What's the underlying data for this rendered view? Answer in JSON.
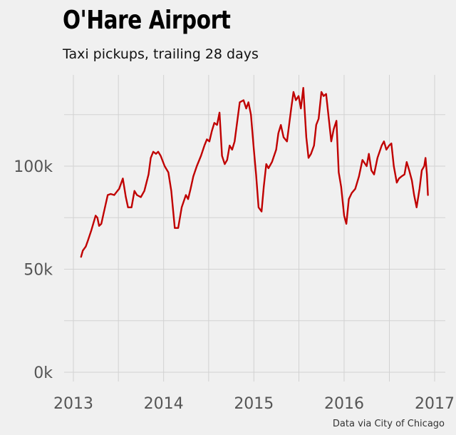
{
  "chart_data": {
    "type": "line",
    "title": "O'Hare Airport",
    "subtitle": "Taxi pickups, trailing 28 days",
    "caption": "Data via City of Chicago",
    "xlabel": "",
    "ylabel": "",
    "x_ticks": [
      "2013",
      "2014",
      "2015",
      "2016",
      "2017"
    ],
    "y_ticks": [
      "0k",
      "50k",
      "100k"
    ],
    "xlim": [
      "2013-01-01",
      "2017-01-01"
    ],
    "ylim": [
      0,
      140000
    ],
    "grid": true,
    "colors": {
      "line": "#c00000",
      "background": "#f0f0f0",
      "grid": "#d2d2d2"
    },
    "series": [
      {
        "x": [
          "2013-02-01",
          "2013-02-08",
          "2013-02-20",
          "2013-03-01",
          "2013-03-15",
          "2013-04-01",
          "2013-04-08",
          "2013-04-15",
          "2013-04-24",
          "2013-05-05",
          "2013-05-20",
          "2013-06-01",
          "2013-06-15",
          "2013-06-28",
          "2013-07-05",
          "2013-07-20",
          "2013-08-01",
          "2013-08-10",
          "2013-08-24",
          "2013-09-05",
          "2013-09-15",
          "2013-10-01",
          "2013-10-15",
          "2013-11-01",
          "2013-11-10",
          "2013-11-20",
          "2013-12-01",
          "2013-12-10",
          "2013-12-20",
          "2014-01-05",
          "2014-01-20",
          "2014-02-01",
          "2014-02-15",
          "2014-03-01",
          "2014-03-15",
          "2014-04-01",
          "2014-04-10",
          "2014-04-20",
          "2014-05-01",
          "2014-05-15",
          "2014-06-01",
          "2014-06-15",
          "2014-06-25",
          "2014-07-05",
          "2014-07-15",
          "2014-07-25",
          "2014-08-05",
          "2014-08-15",
          "2014-08-25",
          "2014-09-05",
          "2014-09-15",
          "2014-09-25",
          "2014-10-05",
          "2014-10-15",
          "2014-10-25",
          "2014-11-05",
          "2014-11-20",
          "2014-12-01",
          "2014-12-10",
          "2014-12-20",
          "2015-01-01",
          "2015-01-10",
          "2015-01-20",
          "2015-02-01",
          "2015-02-10",
          "2015-02-20",
          "2015-03-01",
          "2015-03-15",
          "2015-04-01",
          "2015-04-10",
          "2015-04-20",
          "2015-05-01",
          "2015-05-15",
          "2015-06-01",
          "2015-06-10",
          "2015-06-20",
          "2015-07-01",
          "2015-07-10",
          "2015-07-20",
          "2015-08-01",
          "2015-08-10",
          "2015-08-20",
          "2015-09-01",
          "2015-09-10",
          "2015-09-20",
          "2015-10-01",
          "2015-10-10",
          "2015-10-20",
          "2015-11-01",
          "2015-11-10",
          "2015-11-20",
          "2015-12-01",
          "2015-12-10",
          "2015-12-20",
          "2016-01-01",
          "2016-01-10",
          "2016-01-20",
          "2016-02-01",
          "2016-02-15",
          "2016-03-01",
          "2016-03-15",
          "2016-04-01",
          "2016-04-10",
          "2016-04-20",
          "2016-05-01",
          "2016-05-15",
          "2016-06-01",
          "2016-06-10",
          "2016-06-20",
          "2016-07-01",
          "2016-07-10",
          "2016-07-20",
          "2016-08-01",
          "2016-08-10",
          "2016-08-20",
          "2016-09-01",
          "2016-09-10",
          "2016-09-20",
          "2016-10-01",
          "2016-10-10",
          "2016-10-20",
          "2016-11-01",
          "2016-11-10",
          "2016-11-20",
          "2016-11-25",
          "2016-12-01",
          "2016-12-05"
        ],
        "y": [
          56000,
          59000,
          61000,
          64000,
          69000,
          76000,
          75000,
          71000,
          72000,
          78000,
          86000,
          86500,
          86000,
          88000,
          89000,
          94000,
          85000,
          80000,
          80000,
          88000,
          86000,
          85000,
          88000,
          96000,
          104000,
          107000,
          106000,
          107000,
          105000,
          100000,
          97000,
          88000,
          70000,
          70000,
          80000,
          86000,
          84000,
          89000,
          95000,
          100000,
          105000,
          110000,
          113000,
          112000,
          117000,
          121000,
          120000,
          126000,
          105000,
          101000,
          103000,
          110000,
          108000,
          112000,
          121000,
          131000,
          132000,
          128000,
          131000,
          125000,
          108000,
          96000,
          80000,
          78000,
          90000,
          101000,
          99000,
          102000,
          108000,
          116000,
          120000,
          114000,
          112000,
          128000,
          136000,
          132000,
          134000,
          128000,
          138000,
          114000,
          104000,
          106000,
          110000,
          120000,
          123000,
          136000,
          134000,
          135000,
          122000,
          112000,
          118000,
          122000,
          97000,
          90000,
          76000,
          72000,
          84000,
          87000,
          89000,
          95000,
          103000,
          100000,
          106000,
          98000,
          96000,
          104000,
          110000,
          112000,
          108000,
          110000,
          111000,
          100000,
          92000,
          94000,
          95000,
          96000,
          102000,
          98000,
          93000,
          86000,
          80000,
          89000,
          98000,
          100000,
          104000,
          96000,
          86000
        ]
      }
    ]
  }
}
